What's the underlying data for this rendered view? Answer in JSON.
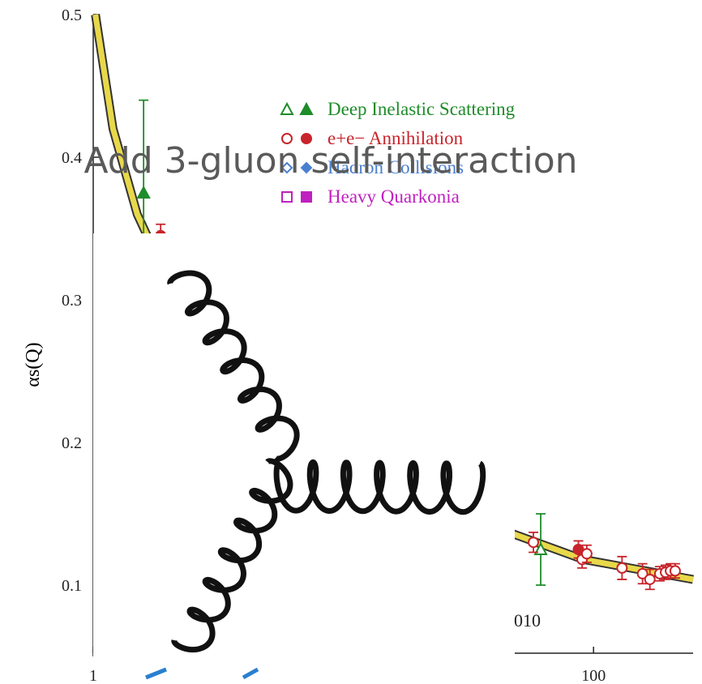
{
  "chart_data": {
    "type": "scatter",
    "title": "Add 3-gluon self-interaction",
    "ylabel": "αs(Q)",
    "annotation": "010",
    "log_x": true,
    "xlim": [
      1,
      250
    ],
    "ylim": [
      0.05,
      0.5
    ],
    "xticks": [
      1,
      100
    ],
    "yticks": [
      0.1,
      0.2,
      0.3,
      0.4,
      0.5
    ],
    "series": [
      {
        "name": "Deep Inelastic Scattering",
        "color": "#1e8c2a",
        "marker": "triangle",
        "x": [
          1.59,
          61.5
        ],
        "values": [
          0.375,
          0.125
        ],
        "errors": [
          0.065,
          0.025
        ],
        "filled": [
          true,
          false
        ]
      },
      {
        "name": "e+e− Annihilation",
        "color": "#c8242b",
        "marker": "circle",
        "x": [
          1.86,
          57.5,
          87,
          90,
          94,
          130,
          157,
          168,
          184,
          194,
          203,
          212
        ],
        "values": [
          0.345,
          0.13,
          0.125,
          0.118,
          0.122,
          0.112,
          0.108,
          0.104,
          0.108,
          0.109,
          0.11,
          0.11
        ],
        "errors": [
          0.008,
          0.007,
          0.006,
          0.006,
          0.006,
          0.008,
          0.007,
          0.007,
          0.005,
          0.005,
          0.005,
          0.005
        ],
        "filled": [
          true,
          false,
          true,
          false,
          false,
          false,
          false,
          false,
          false,
          false,
          false,
          false
        ]
      },
      {
        "name": "Hadron Collisions",
        "color": "#4a7fd0",
        "marker": "diamond",
        "x": [],
        "values": [],
        "errors": [],
        "filled": []
      },
      {
        "name": "Heavy Quarkonia",
        "color": "#c020c0",
        "marker": "square",
        "x": [],
        "values": [],
        "errors": [],
        "filled": []
      }
    ],
    "fit": {
      "color": "#e8d84a",
      "x": [
        1.02,
        1.2,
        1.5,
        1.8,
        5,
        20,
        91,
        250
      ],
      "values": [
        0.5,
        0.42,
        0.36,
        0.33,
        0.21,
        0.16,
        0.118,
        0.104
      ]
    }
  }
}
